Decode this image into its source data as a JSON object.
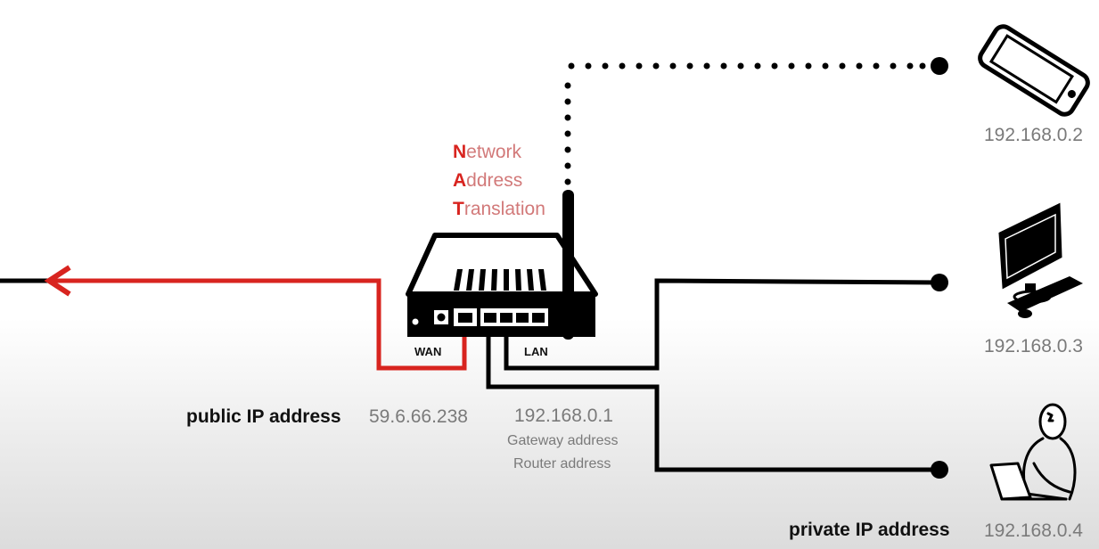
{
  "nat": {
    "line1_initial": "N",
    "line1_rest": "etwork",
    "line2_initial": "A",
    "line2_rest": "ddress",
    "line3_initial": "T",
    "line3_rest": "ranslation"
  },
  "router": {
    "wan_label": "WAN",
    "lan_label": "LAN",
    "ip": "192.168.0.1",
    "gateway_note": "Gateway address",
    "router_note": "Router address"
  },
  "public": {
    "label": "public IP address",
    "ip": "59.6.66.238"
  },
  "private": {
    "label": "private IP address"
  },
  "devices": [
    {
      "name": "phone",
      "ip": "192.168.0.2",
      "link": "wireless",
      "icon": "smartphone-icon"
    },
    {
      "name": "desktop",
      "ip": "192.168.0.3",
      "link": "wired",
      "icon": "desktop-computer-icon"
    },
    {
      "name": "laptop-user",
      "ip": "192.168.0.4",
      "link": "wired",
      "icon": "person-laptop-icon"
    }
  ],
  "colors": {
    "wan_line": "#d8241f",
    "lan_line": "#000000",
    "nat_initials": "#d8241f",
    "nat_text": "#d27979",
    "ip_text": "#7a7a7a"
  }
}
